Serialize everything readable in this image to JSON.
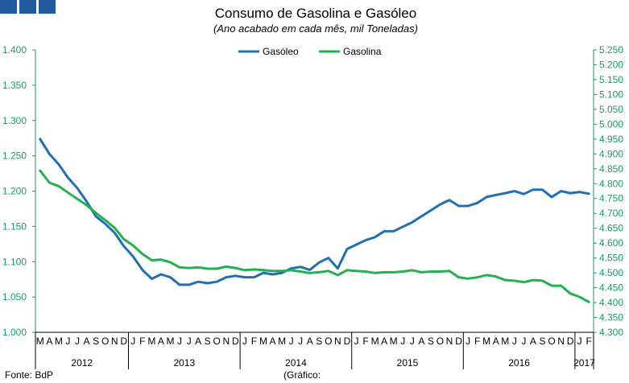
{
  "chart_data": {
    "type": "line",
    "title": "Consumo de Gasolina e Gasóleo",
    "subtitle": "(Ano acabado em cada mês,  mil Toneladas)",
    "left_axis": {
      "ylim": [
        1000,
        1400
      ],
      "ticks": [
        "1.000",
        "1.050",
        "1.100",
        "1.150",
        "1.200",
        "1.250",
        "1.300",
        "1.350",
        "1.400"
      ],
      "tick_values": [
        1000,
        1050,
        1100,
        1150,
        1200,
        1250,
        1300,
        1350,
        1400
      ]
    },
    "right_axis": {
      "ylim": [
        4300,
        5250
      ],
      "ticks": [
        "4.300",
        "4.350",
        "4.400",
        "4.450",
        "4.500",
        "4.550",
        "4.600",
        "4.650",
        "4.700",
        "4.750",
        "4.800",
        "4.850",
        "4.900",
        "4.950",
        "5.000",
        "5.050",
        "5.100",
        "5.150",
        "5.200",
        "5.250"
      ],
      "tick_values": [
        4300,
        4350,
        4400,
        4450,
        4500,
        4550,
        4600,
        4650,
        4700,
        4750,
        4800,
        4850,
        4900,
        4950,
        5000,
        5050,
        5100,
        5150,
        5200,
        5250
      ]
    },
    "month_labels": [
      "M",
      "A",
      "M",
      "J",
      "J",
      "A",
      "S",
      "O",
      "N",
      "D",
      "J",
      "F",
      "M",
      "A",
      "M",
      "J",
      "J",
      "A",
      "S",
      "O",
      "N",
      "D",
      "J",
      "F",
      "M",
      "A",
      "M",
      "J",
      "J",
      "A",
      "S",
      "O",
      "N",
      "D",
      "J",
      "F",
      "M",
      "A",
      "M",
      "J",
      "J",
      "A",
      "S",
      "O",
      "N",
      "D",
      "J",
      "F",
      "M",
      "A",
      "M",
      "J",
      "J",
      "A",
      "S",
      "O",
      "N",
      "D",
      "J",
      "F"
    ],
    "years": [
      {
        "label": "2012",
        "start": 0,
        "end": 9
      },
      {
        "label": "2013",
        "start": 10,
        "end": 21
      },
      {
        "label": "2014",
        "start": 22,
        "end": 33
      },
      {
        "label": "2015",
        "start": 34,
        "end": 45
      },
      {
        "label": "2016",
        "start": 46,
        "end": 57
      },
      {
        "label": "2017",
        "start": 58,
        "end": 59
      }
    ],
    "series": [
      {
        "name": "Gasóleo",
        "axis": "right",
        "color": "#1f6fb5",
        "values": [
          4950,
          4900,
          4865,
          4820,
          4785,
          4740,
          4690,
          4665,
          4635,
          4590,
          4555,
          4510,
          4480,
          4495,
          4485,
          4460,
          4460,
          4470,
          4465,
          4470,
          4485,
          4490,
          4485,
          4485,
          4500,
          4495,
          4500,
          4515,
          4520,
          4510,
          4535,
          4550,
          4515,
          4580,
          4595,
          4610,
          4620,
          4640,
          4640,
          4655,
          4670,
          4690,
          4710,
          4730,
          4745,
          4725,
          4725,
          4735,
          4755,
          4762,
          4768,
          4775,
          4765,
          4780,
          4780,
          4755,
          4775,
          4768,
          4772,
          4766
        ]
      },
      {
        "name": "Gasolina",
        "axis": "left",
        "color": "#22b14c",
        "values": [
          1229,
          1212,
          1207,
          1198,
          1189,
          1180,
          1169,
          1159,
          1148,
          1132,
          1123,
          1111,
          1102,
          1103,
          1099,
          1092,
          1091,
          1092,
          1090,
          1090,
          1093,
          1091,
          1088,
          1089,
          1088,
          1087,
          1087,
          1088,
          1086,
          1084,
          1085,
          1087,
          1081,
          1088,
          1087,
          1086,
          1084,
          1085,
          1085,
          1086,
          1088,
          1085,
          1086,
          1086,
          1087,
          1078,
          1076,
          1078,
          1081,
          1079,
          1074,
          1073,
          1071,
          1074,
          1073,
          1066,
          1066,
          1055,
          1050,
          1043
        ]
      }
    ],
    "source": "Fonte: BdP",
    "note": "(Gráfico:"
  }
}
